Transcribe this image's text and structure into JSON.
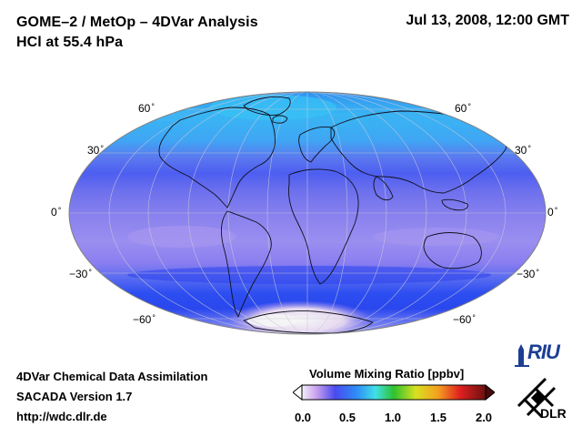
{
  "header": {
    "title_line1": "GOME–2 / MetOp – 4DVar Analysis",
    "title_line2": "HCl at 55.4 hPa",
    "date": "Jul 13, 2008, 12:00 GMT"
  },
  "map": {
    "projection": "Mollweide",
    "lat_labels": {
      "n60": "60",
      "n30": "30",
      "eq": "0",
      "s30": "−30",
      "s60": "−60"
    },
    "colors": {
      "ocean_band_blue": "#3a7bf0",
      "high_lat_cyan": "#36b9f4",
      "tropics_lavender": "#9b8ff0",
      "south_band_blue": "#2f50ee",
      "antarctic_white": "#f2f2f2"
    }
  },
  "footer": {
    "line1": "4DVar Chemical Data Assimilation",
    "line2": "SACADA Version 1.7",
    "line3": "http://wdc.dlr.de"
  },
  "colorbar": {
    "title": "Volume Mixing Ratio [ppbv]",
    "ticks": [
      "0.0",
      "0.5",
      "1.0",
      "1.5",
      "2.0"
    ],
    "range": [
      0.0,
      2.0
    ]
  },
  "logos": {
    "riu": "RIU",
    "dlr": "DLR"
  }
}
